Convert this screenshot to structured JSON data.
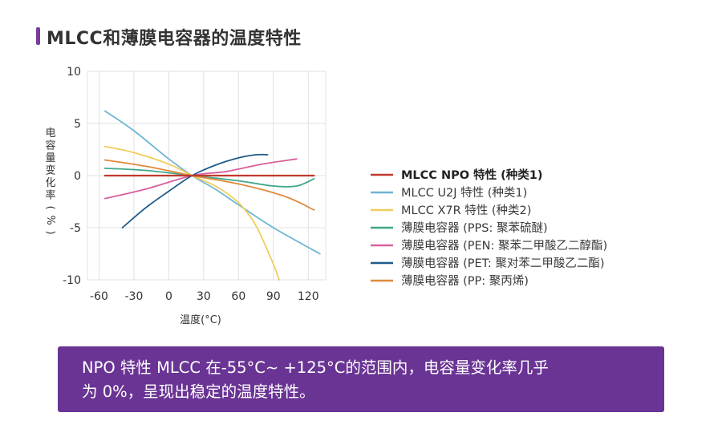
{
  "title": "MLCC和薄膜电容器的温度特性",
  "colors": {
    "accent": "#7b3d9a",
    "banner_bg": "#6a3494",
    "grid": "#e0e0e0"
  },
  "chart_data": {
    "type": "line",
    "title": "MLCC和薄膜电容器的温度特性",
    "xlabel": "温度(°C)",
    "ylabel": "电容量变化率(%)",
    "xlim": [
      -70,
      135
    ],
    "ylim": [
      -10,
      10
    ],
    "xticks": [
      -60,
      -30,
      0,
      30,
      60,
      90,
      120
    ],
    "yticks": [
      10,
      5,
      0,
      -5,
      -10
    ],
    "grid": true,
    "legend_position": "right",
    "series": [
      {
        "name": "MLCC NPO 特性 (种类1)",
        "color": "#c0392b",
        "bold": true,
        "x": [
          -55,
          125
        ],
        "y": [
          0,
          0
        ]
      },
      {
        "name": "MLCC U2J 特性 (种类1)",
        "color": "#6db6d4",
        "x": [
          -55,
          -30,
          0,
          20,
          40,
          60,
          90,
          130
        ],
        "y": [
          6.2,
          4.3,
          1.6,
          0,
          -1.3,
          -2.8,
          -5,
          -7.5
        ]
      },
      {
        "name": "MLCC X7R 特性 (种类2)",
        "color": "#f0cc5c",
        "x": [
          -55,
          -30,
          0,
          20,
          40,
          60,
          75,
          90,
          95
        ],
        "y": [
          2.8,
          2.2,
          1.1,
          0,
          -1,
          -2.6,
          -4.8,
          -8.5,
          -10
        ]
      },
      {
        "name": "薄膜电容器 (PPS: 聚苯硫醚)",
        "color": "#3fa78a",
        "x": [
          -55,
          -20,
          20,
          60,
          90,
          110,
          125
        ],
        "y": [
          0.7,
          0.5,
          0,
          -0.5,
          -1,
          -1,
          -0.3
        ]
      },
      {
        "name": "薄膜电容器 (PEN: 聚苯二甲酸乙二醇酯)",
        "color": "#d8609c",
        "x": [
          -55,
          -20,
          20,
          50,
          80,
          110
        ],
        "y": [
          -2.2,
          -1.3,
          0,
          0.4,
          1.1,
          1.6
        ]
      },
      {
        "name": "薄膜电容器 (PET: 聚对苯二甲酸乙二酯)",
        "color": "#1f5a89",
        "x": [
          -40,
          -20,
          0,
          20,
          40,
          60,
          75,
          85
        ],
        "y": [
          -5,
          -3.1,
          -1.5,
          0,
          1,
          1.7,
          2,
          2
        ]
      },
      {
        "name": "薄膜电容器 (PP: 聚丙烯)",
        "color": "#e08a3c",
        "x": [
          -55,
          -20,
          20,
          60,
          100,
          125
        ],
        "y": [
          1.5,
          0.9,
          0,
          -0.8,
          -2,
          -3.3
        ]
      }
    ]
  },
  "banner": {
    "line1": "NPO 特性 MLCC 在-55°C~ +125°C的范围内，电容量变化率几乎",
    "line2": "为 0%，呈现出稳定的温度特性。"
  }
}
